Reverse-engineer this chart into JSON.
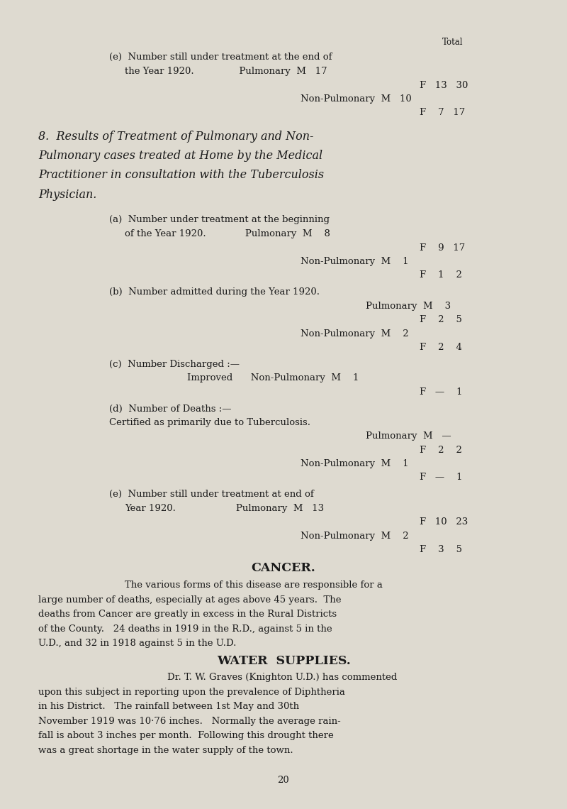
{
  "bg_color": "#dedad0",
  "text_color": "#1a1a1a",
  "page_width": 8.0,
  "page_height": 11.4,
  "dpi": 100,
  "lines": [
    {
      "fx": 0.78,
      "fy": 0.942,
      "text": "Total",
      "size": 8.5,
      "style": "normal",
      "weight": "normal",
      "ha": "left"
    },
    {
      "fx": 0.192,
      "fy": 0.924,
      "text": "(e)  Number still under treatment at the end of",
      "size": 9.5,
      "style": "normal",
      "weight": "normal",
      "ha": "left"
    },
    {
      "fx": 0.22,
      "fy": 0.906,
      "text": "the Year 1920.               Pulmonary  M   17",
      "size": 9.5,
      "style": "normal",
      "weight": "normal",
      "ha": "left"
    },
    {
      "fx": 0.74,
      "fy": 0.889,
      "text": "F   13   30",
      "size": 9.5,
      "style": "normal",
      "weight": "normal",
      "ha": "left"
    },
    {
      "fx": 0.53,
      "fy": 0.872,
      "text": "Non-Pulmonary  M   10",
      "size": 9.5,
      "style": "normal",
      "weight": "normal",
      "ha": "left"
    },
    {
      "fx": 0.74,
      "fy": 0.855,
      "text": "F    7   17",
      "size": 9.5,
      "style": "normal",
      "weight": "normal",
      "ha": "left"
    },
    {
      "fx": 0.068,
      "fy": 0.824,
      "text": "8.  Results of Treatment of Pulmonary and Non-",
      "size": 11.5,
      "style": "italic",
      "weight": "normal",
      "ha": "left"
    },
    {
      "fx": 0.068,
      "fy": 0.8,
      "text": "Pulmonary cases treated at Home by the Medical",
      "size": 11.5,
      "style": "italic",
      "weight": "normal",
      "ha": "left"
    },
    {
      "fx": 0.068,
      "fy": 0.776,
      "text": "Practitioner in consultation with the Tuberculosis",
      "size": 11.5,
      "style": "italic",
      "weight": "normal",
      "ha": "left"
    },
    {
      "fx": 0.068,
      "fy": 0.752,
      "text": "Physician.",
      "size": 11.5,
      "style": "italic",
      "weight": "normal",
      "ha": "left"
    },
    {
      "fx": 0.192,
      "fy": 0.723,
      "text": "(a)  Number under treatment at the beginning",
      "size": 9.5,
      "style": "normal",
      "weight": "normal",
      "ha": "left"
    },
    {
      "fx": 0.22,
      "fy": 0.705,
      "text": "of the Year 1920.             Pulmonary  M    8",
      "size": 9.5,
      "style": "normal",
      "weight": "normal",
      "ha": "left"
    },
    {
      "fx": 0.74,
      "fy": 0.688,
      "text": "F    9   17",
      "size": 9.5,
      "style": "normal",
      "weight": "normal",
      "ha": "left"
    },
    {
      "fx": 0.53,
      "fy": 0.671,
      "text": "Non-Pulmonary  M    1",
      "size": 9.5,
      "style": "normal",
      "weight": "normal",
      "ha": "left"
    },
    {
      "fx": 0.74,
      "fy": 0.654,
      "text": "F    1    2",
      "size": 9.5,
      "style": "normal",
      "weight": "normal",
      "ha": "left"
    },
    {
      "fx": 0.192,
      "fy": 0.633,
      "text": "(b)  Number admitted during the Year 1920.",
      "size": 9.5,
      "style": "normal",
      "weight": "normal",
      "ha": "left"
    },
    {
      "fx": 0.645,
      "fy": 0.616,
      "text": "Pulmonary  M    3",
      "size": 9.5,
      "style": "normal",
      "weight": "normal",
      "ha": "left"
    },
    {
      "fx": 0.74,
      "fy": 0.599,
      "text": "F    2    5",
      "size": 9.5,
      "style": "normal",
      "weight": "normal",
      "ha": "left"
    },
    {
      "fx": 0.53,
      "fy": 0.582,
      "text": "Non-Pulmonary  M    2",
      "size": 9.5,
      "style": "normal",
      "weight": "normal",
      "ha": "left"
    },
    {
      "fx": 0.74,
      "fy": 0.565,
      "text": "F    2    4",
      "size": 9.5,
      "style": "normal",
      "weight": "normal",
      "ha": "left"
    },
    {
      "fx": 0.192,
      "fy": 0.544,
      "text": "(c)  Number Discharged :—",
      "size": 9.5,
      "style": "normal",
      "weight": "normal",
      "ha": "left"
    },
    {
      "fx": 0.33,
      "fy": 0.527,
      "text": "Improved      Non-Pulmonary  M    1",
      "size": 9.5,
      "style": "normal",
      "weight": "normal",
      "ha": "left"
    },
    {
      "fx": 0.74,
      "fy": 0.51,
      "text": "F   —    1",
      "size": 9.5,
      "style": "normal",
      "weight": "normal",
      "ha": "left"
    },
    {
      "fx": 0.192,
      "fy": 0.489,
      "text": "(d)  Number of Deaths :—",
      "size": 9.5,
      "style": "normal",
      "weight": "normal",
      "ha": "left"
    },
    {
      "fx": 0.192,
      "fy": 0.472,
      "text": "Certified as primarily due to Tuberculosis.",
      "size": 9.5,
      "style": "normal",
      "weight": "normal",
      "ha": "left"
    },
    {
      "fx": 0.645,
      "fy": 0.455,
      "text": "Pulmonary  M   —",
      "size": 9.5,
      "style": "normal",
      "weight": "normal",
      "ha": "left"
    },
    {
      "fx": 0.74,
      "fy": 0.438,
      "text": "F    2    2",
      "size": 9.5,
      "style": "normal",
      "weight": "normal",
      "ha": "left"
    },
    {
      "fx": 0.53,
      "fy": 0.421,
      "text": "Non-Pulmonary  M    1",
      "size": 9.5,
      "style": "normal",
      "weight": "normal",
      "ha": "left"
    },
    {
      "fx": 0.74,
      "fy": 0.404,
      "text": "F   —    1",
      "size": 9.5,
      "style": "normal",
      "weight": "normal",
      "ha": "left"
    },
    {
      "fx": 0.192,
      "fy": 0.383,
      "text": "(e)  Number still under treatment at end of",
      "size": 9.5,
      "style": "normal",
      "weight": "normal",
      "ha": "left"
    },
    {
      "fx": 0.22,
      "fy": 0.366,
      "text": "Year 1920.                    Pulmonary  M   13",
      "size": 9.5,
      "style": "normal",
      "weight": "normal",
      "ha": "left"
    },
    {
      "fx": 0.74,
      "fy": 0.349,
      "text": "F   10   23",
      "size": 9.5,
      "style": "normal",
      "weight": "normal",
      "ha": "left"
    },
    {
      "fx": 0.53,
      "fy": 0.332,
      "text": "Non-Pulmonary  M    2",
      "size": 9.5,
      "style": "normal",
      "weight": "normal",
      "ha": "left"
    },
    {
      "fx": 0.74,
      "fy": 0.315,
      "text": "F    3    5",
      "size": 9.5,
      "style": "normal",
      "weight": "normal",
      "ha": "left"
    },
    {
      "fx": 0.5,
      "fy": 0.29,
      "text": "CANCER.",
      "size": 12.5,
      "style": "normal",
      "weight": "bold",
      "ha": "center"
    },
    {
      "fx": 0.22,
      "fy": 0.271,
      "text": "The various forms of this disease are responsible for a",
      "size": 9.5,
      "style": "normal",
      "weight": "normal",
      "ha": "left"
    },
    {
      "fx": 0.068,
      "fy": 0.253,
      "text": "large number of deaths, especially at ages above 45 years.  The",
      "size": 9.5,
      "style": "normal",
      "weight": "normal",
      "ha": "left"
    },
    {
      "fx": 0.068,
      "fy": 0.235,
      "text": "deaths from Cancer are greatly in excess in the Rural Districts",
      "size": 9.5,
      "style": "normal",
      "weight": "normal",
      "ha": "left"
    },
    {
      "fx": 0.068,
      "fy": 0.217,
      "text": "of the County.   24 deaths in 1919 in the R.D., against 5 in the",
      "size": 9.5,
      "style": "normal",
      "weight": "normal",
      "ha": "left"
    },
    {
      "fx": 0.068,
      "fy": 0.199,
      "text": "U.D., and 32 in 1918 against 5 in the U.D.",
      "size": 9.5,
      "style": "normal",
      "weight": "normal",
      "ha": "left"
    },
    {
      "fx": 0.5,
      "fy": 0.175,
      "text": "WATER  SUPPLIES.",
      "size": 12.5,
      "style": "normal",
      "weight": "bold",
      "ha": "center"
    },
    {
      "fx": 0.295,
      "fy": 0.157,
      "text": "Dr. T. W. Graves (Knighton U.D.) has commented",
      "size": 9.5,
      "style": "normal",
      "weight": "normal",
      "ha": "left"
    },
    {
      "fx": 0.068,
      "fy": 0.139,
      "text": "upon this subject in reporting upon the prevalence of Diphtheria",
      "size": 9.5,
      "style": "normal",
      "weight": "normal",
      "ha": "left"
    },
    {
      "fx": 0.068,
      "fy": 0.121,
      "text": "in his District.   The rainfall between 1st May and 30th",
      "size": 9.5,
      "style": "normal",
      "weight": "normal",
      "ha": "left"
    },
    {
      "fx": 0.068,
      "fy": 0.103,
      "text": "November 1919 was 10·76 inches.   Normally the average rain-",
      "size": 9.5,
      "style": "normal",
      "weight": "normal",
      "ha": "left"
    },
    {
      "fx": 0.068,
      "fy": 0.085,
      "text": "fall is about 3 inches per month.  Following this drought there",
      "size": 9.5,
      "style": "normal",
      "weight": "normal",
      "ha": "left"
    },
    {
      "fx": 0.068,
      "fy": 0.067,
      "text": "was a great shortage in the water supply of the town.",
      "size": 9.5,
      "style": "normal",
      "weight": "normal",
      "ha": "left"
    },
    {
      "fx": 0.5,
      "fy": 0.03,
      "text": "20",
      "size": 9.5,
      "style": "normal",
      "weight": "normal",
      "ha": "center"
    }
  ]
}
